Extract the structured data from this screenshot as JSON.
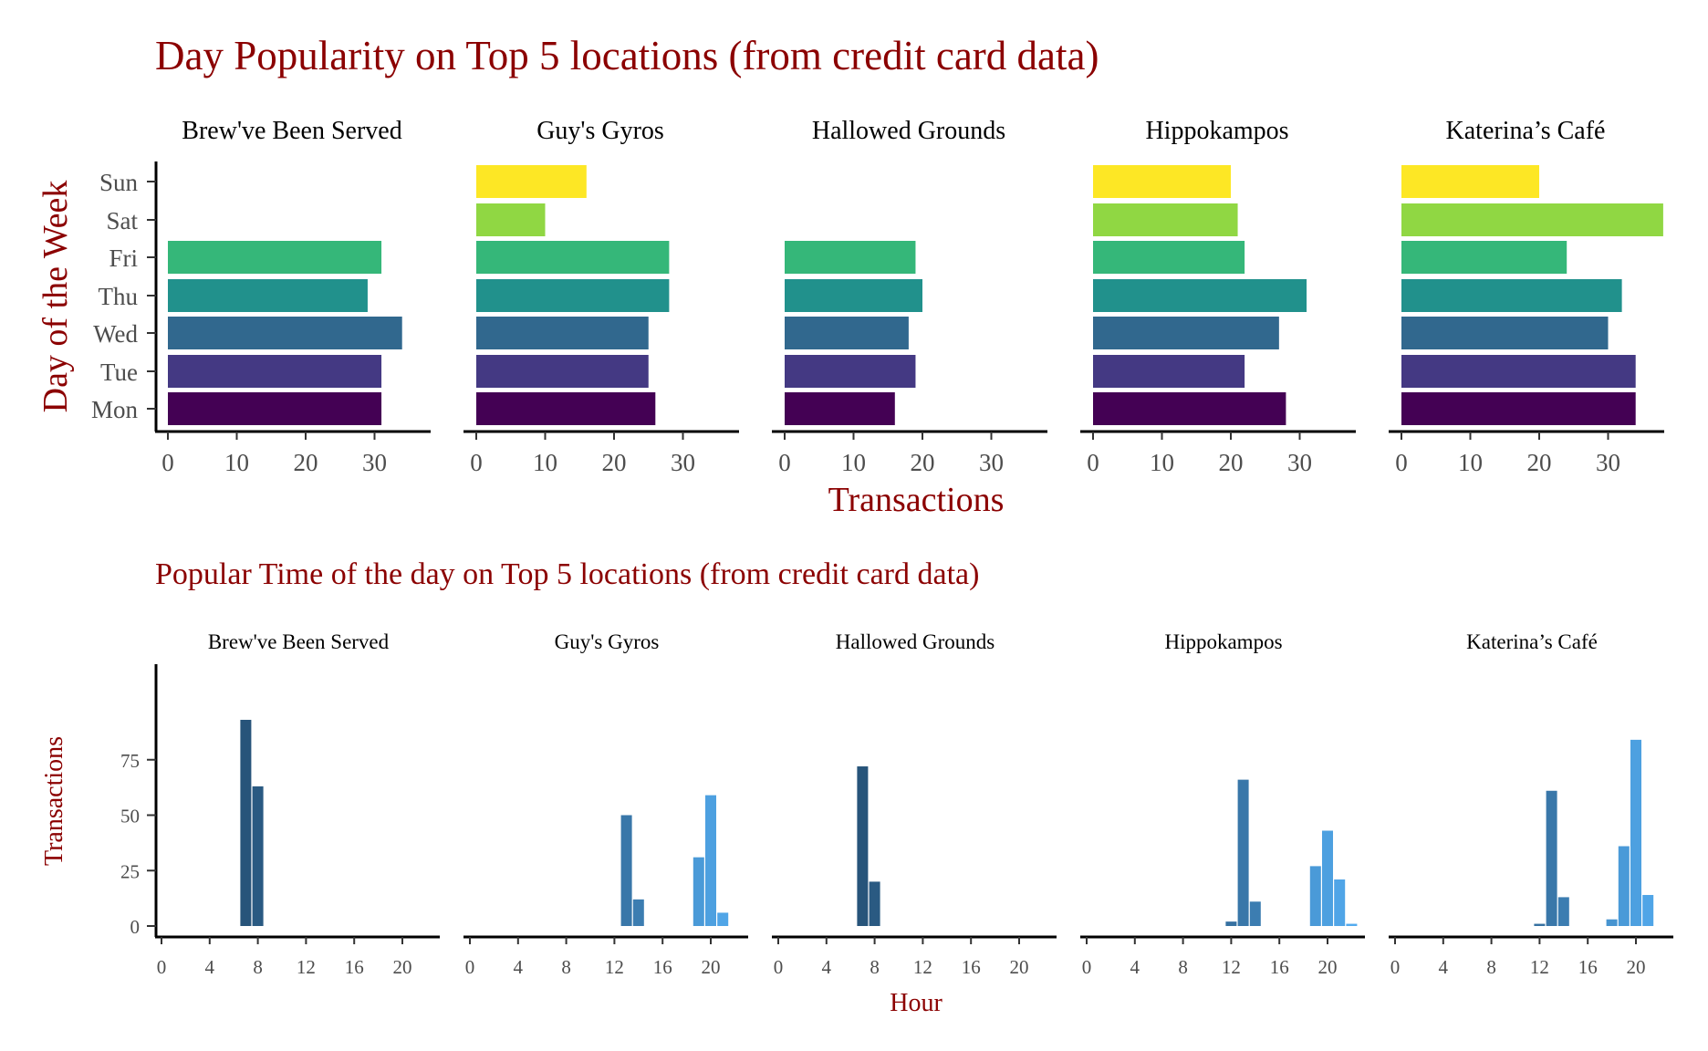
{
  "chart_data": [
    {
      "type": "bar",
      "orientation": "horizontal",
      "title": "Day Popularity on Top 5 locations (from credit card data)",
      "xlabel": "Transactions",
      "ylabel": "Day of the Week",
      "categories": [
        "Mon",
        "Tue",
        "Wed",
        "Thu",
        "Fri",
        "Sat",
        "Sun"
      ],
      "xlim": [
        0,
        38
      ],
      "x_ticks": [
        0,
        10,
        20,
        30
      ],
      "colors": [
        "#440154",
        "#443983",
        "#31688e",
        "#21918c",
        "#35b779",
        "#90d743",
        "#fde725"
      ],
      "grid": false,
      "legend": "none",
      "facets": [
        {
          "name": "Brew've Been Served",
          "values": [
            31,
            31,
            34,
            29,
            31,
            0,
            0
          ]
        },
        {
          "name": "Guy's Gyros",
          "values": [
            26,
            25,
            25,
            28,
            28,
            10,
            16
          ]
        },
        {
          "name": "Hallowed Grounds",
          "values": [
            16,
            19,
            18,
            20,
            19,
            0,
            0
          ]
        },
        {
          "name": "Hippokampos",
          "values": [
            28,
            22,
            27,
            31,
            22,
            21,
            20
          ]
        },
        {
          "name": "Katerina’s Café",
          "values": [
            34,
            34,
            30,
            32,
            24,
            38,
            20
          ]
        }
      ]
    },
    {
      "type": "bar",
      "title": "Popular Time of the day on Top 5 locations (from credit card data)",
      "xlabel": "Hour",
      "ylabel": "Transactions",
      "x_ticks": [
        0,
        4,
        8,
        12,
        16,
        20
      ],
      "y_ticks": [
        0,
        25,
        50,
        75
      ],
      "xlim": [
        -0.5,
        23.5
      ],
      "ylim": [
        0,
        93
      ],
      "color_scale": {
        "low": "#132b43",
        "high": "#56b1f7"
      },
      "grid": false,
      "legend": "none",
      "facets": [
        {
          "name": "Brew've Been Served",
          "bars": [
            {
              "hour": 7,
              "value": 93
            },
            {
              "hour": 8,
              "value": 63
            }
          ]
        },
        {
          "name": "Guy's Gyros",
          "bars": [
            {
              "hour": 13,
              "value": 50
            },
            {
              "hour": 14,
              "value": 12
            },
            {
              "hour": 19,
              "value": 31
            },
            {
              "hour": 20,
              "value": 59
            },
            {
              "hour": 21,
              "value": 6
            }
          ]
        },
        {
          "name": "Hallowed Grounds",
          "bars": [
            {
              "hour": 7,
              "value": 72
            },
            {
              "hour": 8,
              "value": 20
            }
          ]
        },
        {
          "name": "Hippokampos",
          "bars": [
            {
              "hour": 12,
              "value": 2
            },
            {
              "hour": 13,
              "value": 66
            },
            {
              "hour": 14,
              "value": 11
            },
            {
              "hour": 19,
              "value": 27
            },
            {
              "hour": 20,
              "value": 43
            },
            {
              "hour": 21,
              "value": 21
            },
            {
              "hour": 22,
              "value": 1
            }
          ]
        },
        {
          "name": "Katerina’s Café",
          "bars": [
            {
              "hour": 12,
              "value": 1
            },
            {
              "hour": 13,
              "value": 61
            },
            {
              "hour": 14,
              "value": 13
            },
            {
              "hour": 18,
              "value": 3
            },
            {
              "hour": 19,
              "value": 36
            },
            {
              "hour": 20,
              "value": 84
            },
            {
              "hour": 21,
              "value": 14
            }
          ]
        }
      ]
    }
  ]
}
